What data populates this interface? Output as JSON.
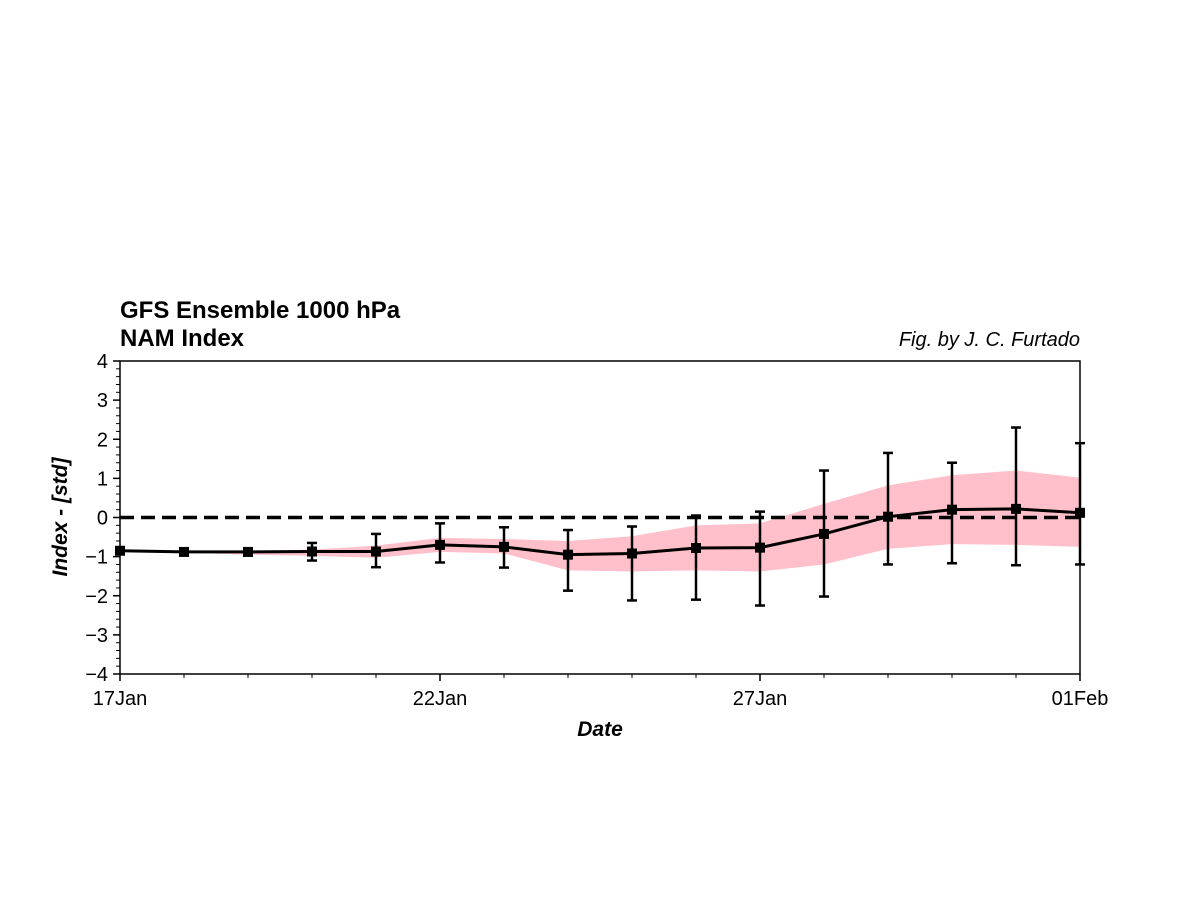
{
  "chart_data": {
    "type": "line",
    "title_lines": [
      "GFS Ensemble 1000 hPa",
      "NAM Index"
    ],
    "credit": "Fig. by J. C. Furtado",
    "xlabel": "Date",
    "ylabel": "Index - [std]",
    "x": [
      "2025-01-17",
      "2025-01-18",
      "2025-01-19",
      "2025-01-20",
      "2025-01-21",
      "2025-01-22",
      "2025-01-23",
      "2025-01-24",
      "2025-01-25",
      "2025-01-26",
      "2025-01-27",
      "2025-01-28",
      "2025-01-29",
      "2025-01-30",
      "2025-01-31",
      "2025-02-01"
    ],
    "xlim": [
      "2025-01-17",
      "2025-02-01"
    ],
    "xticks": [
      "2025-01-17",
      "2025-01-22",
      "2025-01-27",
      "2025-02-01"
    ],
    "xtick_labels": [
      "17Jan",
      "22Jan",
      "27Jan",
      "01Feb"
    ],
    "ylim": [
      -4,
      4
    ],
    "yticks": [
      4,
      3,
      2,
      1,
      0,
      -1,
      -2,
      -3,
      -4
    ],
    "ytick_labels": [
      "4",
      "3",
      "2",
      "1",
      "0",
      "−1",
      "−2",
      "−3",
      "−4"
    ],
    "zero_line": true,
    "grid": false,
    "series": [
      {
        "kind": "mean_line",
        "color": "#000000",
        "marker": "square",
        "values": [
          -0.85,
          -0.88,
          -0.88,
          -0.87,
          -0.87,
          -0.7,
          -0.75,
          -0.95,
          -0.92,
          -0.78,
          -0.77,
          -0.42,
          0.02,
          0.2,
          0.22,
          0.12
        ]
      },
      {
        "kind": "error_bars",
        "color": "#000000",
        "lower": [
          -0.87,
          -0.92,
          -0.97,
          -1.1,
          -1.27,
          -1.15,
          -1.28,
          -1.87,
          -2.12,
          -2.1,
          -2.25,
          -2.02,
          -1.2,
          -1.17,
          -1.22,
          -1.2
        ],
        "upper": [
          -0.82,
          -0.84,
          -0.8,
          -0.65,
          -0.42,
          -0.15,
          -0.25,
          -0.32,
          -0.23,
          0.05,
          0.15,
          1.2,
          1.65,
          1.4,
          2.3,
          1.9
        ]
      },
      {
        "kind": "spread_band",
        "color": "#ffc0cb",
        "lower": [
          -0.87,
          -0.9,
          -0.95,
          -0.98,
          -1.03,
          -0.88,
          -0.92,
          -1.35,
          -1.38,
          -1.35,
          -1.38,
          -1.2,
          -0.8,
          -0.68,
          -0.7,
          -0.75
        ],
        "upper": [
          -0.82,
          -0.85,
          -0.85,
          -0.82,
          -0.72,
          -0.52,
          -0.55,
          -0.6,
          -0.48,
          -0.2,
          -0.15,
          0.35,
          0.82,
          1.08,
          1.2,
          1.02
        ]
      }
    ]
  }
}
